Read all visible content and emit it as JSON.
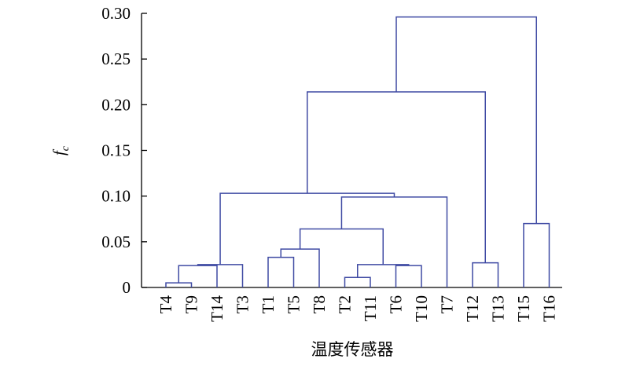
{
  "chart_data": {
    "type": "dendrogram",
    "ylabel": "f",
    "ylabel_subscript": "c",
    "xlabel": "温度传感器",
    "leaves": [
      "T4",
      "T9",
      "T14",
      "T3",
      "T1",
      "T5",
      "T8",
      "T2",
      "T11",
      "T6",
      "T10",
      "T7",
      "T12",
      "T13",
      "T15",
      "T16"
    ],
    "merges": [
      {
        "left": 0,
        "right": 1,
        "height": 0.005
      },
      {
        "left": 16,
        "right": 2,
        "height": 0.024
      },
      {
        "left": 17,
        "right": 3,
        "height": 0.025
      },
      {
        "left": 4,
        "right": 5,
        "height": 0.033
      },
      {
        "left": 19,
        "right": 6,
        "height": 0.042
      },
      {
        "left": 7,
        "right": 8,
        "height": 0.011
      },
      {
        "left": 9,
        "right": 10,
        "height": 0.024
      },
      {
        "left": 21,
        "right": 22,
        "height": 0.025
      },
      {
        "left": 20,
        "right": 23,
        "height": 0.064
      },
      {
        "left": 24,
        "right": 11,
        "height": 0.099
      },
      {
        "left": 18,
        "right": 25,
        "height": 0.103
      },
      {
        "left": 12,
        "right": 13,
        "height": 0.027
      },
      {
        "left": 26,
        "right": 27,
        "height": 0.214
      },
      {
        "left": 14,
        "right": 15,
        "height": 0.07
      },
      {
        "left": 28,
        "right": 29,
        "height": 0.296
      }
    ],
    "color": "#3f4aa3",
    "ylim": [
      0,
      0.3
    ],
    "yticks": [
      0,
      0.05,
      {
        "value": 0.1,
        "label": "0.10"
      },
      0.15,
      {
        "value": 0.2,
        "label": "0.20"
      },
      0.25,
      {
        "value": 0.3,
        "label": "0.30"
      }
    ]
  }
}
